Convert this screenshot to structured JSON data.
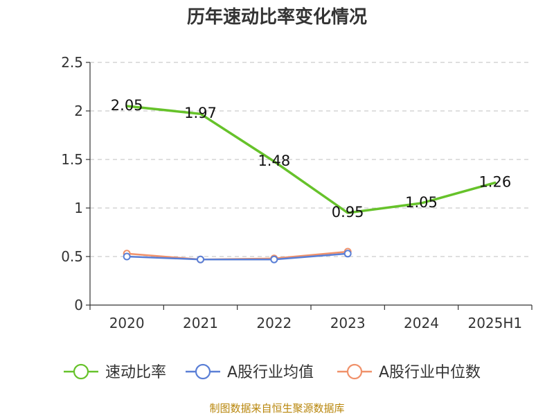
{
  "chart_data": {
    "type": "line",
    "title": "历年速动比率变化情况",
    "xlabel": "",
    "ylabel": "",
    "categories": [
      "2020",
      "2021",
      "2022",
      "2023",
      "2024",
      "2025H1"
    ],
    "ylim": [
      0,
      2.5
    ],
    "yticks": [
      "0",
      "0.5",
      "1",
      "1.5",
      "2",
      "2.5"
    ],
    "grid": true,
    "legend_position": "bottom",
    "series": [
      {
        "name": "速动比率",
        "color": "#66c22a",
        "values": [
          2.05,
          1.97,
          1.48,
          0.95,
          1.05,
          1.26
        ],
        "data_labels": [
          "2.05",
          "1.97",
          "1.48",
          "0.95",
          "1.05",
          "1.26"
        ],
        "show_points": false
      },
      {
        "name": "A股行业均值",
        "color": "#5a7fd6",
        "values": [
          0.5,
          0.47,
          0.47,
          0.53,
          null,
          null
        ],
        "show_points": true
      },
      {
        "name": "A股行业中位数",
        "color": "#f0916a",
        "values": [
          0.53,
          0.47,
          0.48,
          0.55,
          null,
          null
        ],
        "show_points": true
      }
    ]
  },
  "footer": {
    "source": "制图数据来自恒生聚源数据库"
  }
}
